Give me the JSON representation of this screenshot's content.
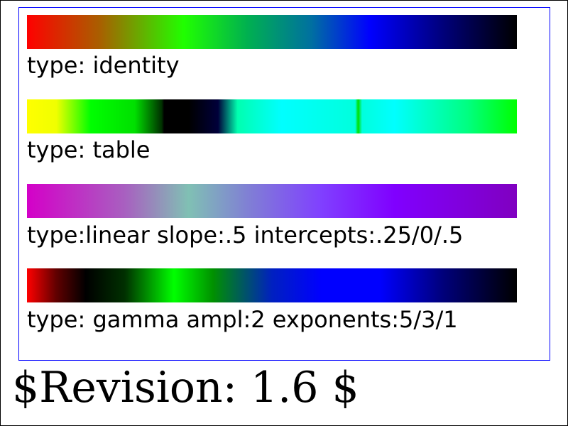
{
  "demo": {
    "rows": [
      {
        "id": "identity",
        "label": "type: identity",
        "gradient_colors": [
          "#ff0000",
          "#a86000",
          "#20ff00",
          "#00b050",
          "#0070a0",
          "#0000ff",
          "#00007a",
          "#000000"
        ]
      },
      {
        "id": "table",
        "label": "type: table",
        "gradient_colors": [
          "#ffff00",
          "#00ff00",
          "#000000",
          "#00003a",
          "#00ffff",
          "#00e000",
          "#00ff00"
        ]
      },
      {
        "id": "linear",
        "label": "type:linear slope:.5 intercepts:.25/0/.5",
        "gradient_colors": [
          "#d400c8",
          "#80c0b4",
          "#8000ff",
          "#8000c0"
        ]
      },
      {
        "id": "gamma",
        "label": "type: gamma ampl:2 exponents:5/3/1",
        "gradient_colors": [
          "#ff0000",
          "#000000",
          "#00ff00",
          "#0000ff",
          "#000000"
        ]
      }
    ]
  },
  "footer": {
    "revision": "$Revision: 1.6 $"
  },
  "colors": {
    "frame_border": "#0000ff",
    "page_border": "#000000",
    "background": "#ffffff",
    "text": "#000000"
  }
}
